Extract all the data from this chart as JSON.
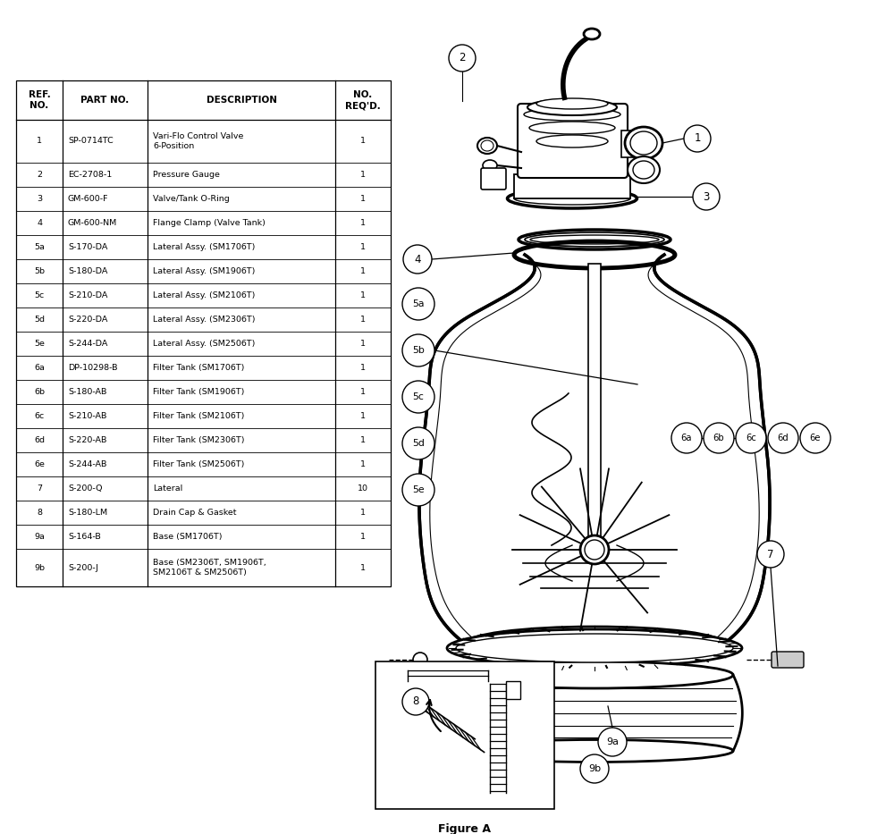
{
  "bg_color": "#ffffff",
  "table_col_headers": [
    "REF.\nNO.",
    "PART NO.",
    "DESCRIPTION",
    "NO.\nREQ'D."
  ],
  "table_rows": [
    [
      "1",
      "SP-0714TC",
      "Vari-Flo Control Valve\n6-Position",
      "1"
    ],
    [
      "2",
      "EC-2708-1",
      "Pressure Gauge",
      "1"
    ],
    [
      "3",
      "GM-600-F",
      "Valve/Tank O-Ring",
      "1"
    ],
    [
      "4",
      "GM-600-NM",
      "Flange Clamp (Valve Tank)",
      "1"
    ],
    [
      "5a",
      "S-170-DA",
      "Lateral Assy. (SM1706T)",
      "1"
    ],
    [
      "5b",
      "S-180-DA",
      "Lateral Assy. (SM1906T)",
      "1"
    ],
    [
      "5c",
      "S-210-DA",
      "Lateral Assy. (SM2106T)",
      "1"
    ],
    [
      "5d",
      "S-220-DA",
      "Lateral Assy. (SM2306T)",
      "1"
    ],
    [
      "5e",
      "S-244-DA",
      "Lateral Assy. (SM2506T)",
      "1"
    ],
    [
      "6a",
      "DP-10298-B",
      "Filter Tank (SM1706T)",
      "1"
    ],
    [
      "6b",
      "S-180-AB",
      "Filter Tank (SM1906T)",
      "1"
    ],
    [
      "6c",
      "S-210-AB",
      "Filter Tank (SM2106T)",
      "1"
    ],
    [
      "6d",
      "S-220-AB",
      "Filter Tank (SM2306T)",
      "1"
    ],
    [
      "6e",
      "S-244-AB",
      "Filter Tank (SM2506T)",
      "1"
    ],
    [
      "7",
      "S-200-Q",
      "Lateral",
      "10"
    ],
    [
      "8",
      "S-180-LM",
      "Drain Cap & Gasket",
      "1"
    ],
    [
      "9a",
      "S-164-B",
      "Base (SM1706T)",
      "1"
    ],
    [
      "9b",
      "S-200-J",
      "Base (SM2306T, SM1906T,\nSM2106T & SM2506T)",
      "1"
    ]
  ]
}
